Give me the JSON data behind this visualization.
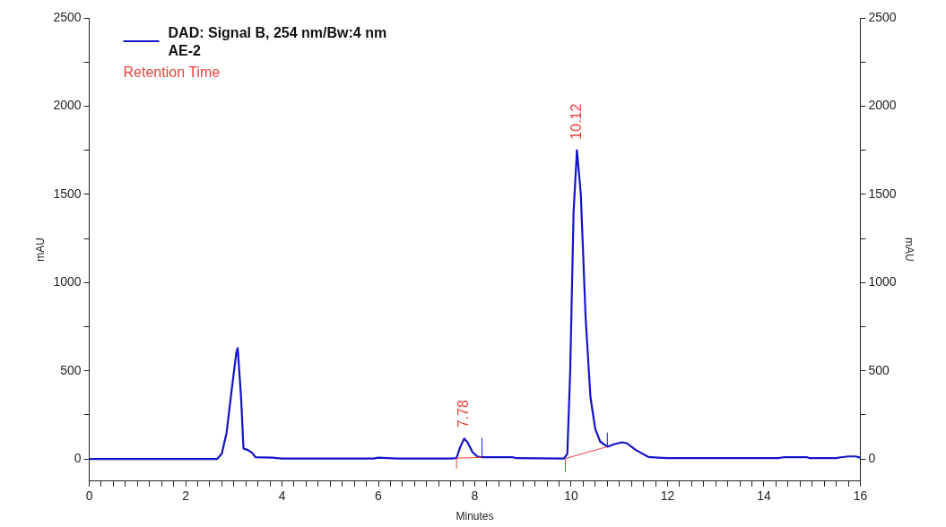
{
  "chart_data": {
    "type": "line",
    "xlabel": "Minutes",
    "ylabel": "mAU",
    "y2label": "mAU",
    "legend": "top left",
    "grid": false,
    "marker": "none",
    "line_style": "solid",
    "xlim": [
      0,
      16
    ],
    "xticks": [
      0,
      {
        "value": 0.25,
        "label": null
      },
      {
        "value": 0.5,
        "label": null
      },
      {
        "value": 0.75,
        "label": null
      },
      {
        "value": 1,
        "label": null
      },
      {
        "value": 1.25,
        "label": null
      },
      {
        "value": 1.5,
        "label": null
      },
      {
        "value": 1.75,
        "label": null
      },
      2,
      {
        "value": 2.25,
        "label": null
      },
      {
        "value": 2.5,
        "label": null
      },
      {
        "value": 2.75,
        "label": null
      },
      {
        "value": 3,
        "label": null
      },
      {
        "value": 3.25,
        "label": null
      },
      {
        "value": 3.5,
        "label": null
      },
      {
        "value": 3.75,
        "label": null
      },
      4,
      {
        "value": 4.25,
        "label": null
      },
      {
        "value": 4.5,
        "label": null
      },
      {
        "value": 4.75,
        "label": null
      },
      {
        "value": 5,
        "label": null
      },
      {
        "value": 5.25,
        "label": null
      },
      {
        "value": 5.5,
        "label": null
      },
      {
        "value": 5.75,
        "label": null
      },
      6,
      {
        "value": 6.25,
        "label": null
      },
      {
        "value": 6.5,
        "label": null
      },
      {
        "value": 6.75,
        "label": null
      },
      {
        "value": 7,
        "label": null
      },
      {
        "value": 7.25,
        "label": null
      },
      {
        "value": 7.5,
        "label": null
      },
      {
        "value": 7.75,
        "label": null
      },
      8,
      {
        "value": 8.25,
        "label": null
      },
      {
        "value": 8.5,
        "label": null
      },
      {
        "value": 8.75,
        "label": null
      },
      {
        "value": 9,
        "label": null
      },
      {
        "value": 9.25,
        "label": null
      },
      {
        "value": 9.5,
        "label": null
      },
      {
        "value": 9.75,
        "label": null
      },
      10,
      {
        "value": 10.25,
        "label": null
      },
      {
        "value": 10.5,
        "label": null
      },
      {
        "value": 10.75,
        "label": null
      },
      {
        "value": 11,
        "label": null
      },
      {
        "value": 11.25,
        "label": null
      },
      {
        "value": 11.5,
        "label": null
      },
      {
        "value": 11.75,
        "label": null
      },
      12,
      {
        "value": 12.25,
        "label": null
      },
      {
        "value": 12.5,
        "label": null
      },
      {
        "value": 12.75,
        "label": null
      },
      {
        "value": 13,
        "label": null
      },
      {
        "value": 13.25,
        "label": null
      },
      {
        "value": 13.5,
        "label": null
      },
      {
        "value": 13.75,
        "label": null
      },
      14,
      {
        "value": 14.25,
        "label": null
      },
      {
        "value": 14.5,
        "label": null
      },
      {
        "value": 14.75,
        "label": null
      },
      {
        "value": 15,
        "label": null
      },
      {
        "value": 15.25,
        "label": null
      },
      {
        "value": 15.5,
        "label": null
      },
      {
        "value": 15.75,
        "label": null
      },
      16
    ],
    "ylim": [
      -125,
      2500
    ],
    "yticks": [
      0,
      {
        "value": 250,
        "label": null
      },
      500,
      {
        "value": 750,
        "label": null
      },
      1000,
      {
        "value": 1250,
        "label": null
      },
      1500,
      {
        "value": 1750,
        "label": null
      },
      2000,
      {
        "value": 2250,
        "label": null
      },
      2500
    ],
    "y2lim": [
      -125,
      2500
    ],
    "y2ticks": [
      0,
      {
        "value": 250,
        "label": null
      },
      500,
      {
        "value": 750,
        "label": null
      },
      1000,
      {
        "value": 1250,
        "label": null
      },
      1500,
      {
        "value": 1750,
        "label": null
      },
      2000,
      {
        "value": 2250,
        "label": null
      },
      2500
    ],
    "series": [
      {
        "name": "DAD: Signal B, 254 nm/Bw:4 nm\nAE-2",
        "color": "#1414c8",
        "x": [
          0,
          2.65,
          2.75,
          2.85,
          2.95,
          3.05,
          3.08,
          3.15,
          3.2,
          3.3,
          3.38,
          3.45,
          3.8,
          4.0,
          5.9,
          6.0,
          6.2,
          6.4,
          7.5,
          7.62,
          7.7,
          7.78,
          7.85,
          7.95,
          8.05,
          8.15,
          8.8,
          8.85,
          9.85,
          9.92,
          9.98,
          10.05,
          10.12,
          10.2,
          10.3,
          10.4,
          10.5,
          10.6,
          10.75,
          10.9,
          11.05,
          11.15,
          11.35,
          11.6,
          11.8,
          12.0,
          14.3,
          14.4,
          14.9,
          14.95,
          15.5,
          15.6,
          15.75,
          15.9,
          16.0
        ],
        "values": [
          0,
          0,
          30,
          150,
          380,
          600,
          629,
          350,
          60,
          50,
          35,
          10,
          8,
          3,
          3,
          8,
          5,
          3,
          3,
          5,
          70,
          116,
          95,
          40,
          15,
          10,
          10,
          5,
          3,
          30,
          500,
          1400,
          1750,
          1500,
          800,
          350,
          170,
          100,
          70,
          85,
          95,
          90,
          50,
          12,
          8,
          5,
          5,
          10,
          10,
          5,
          5,
          10,
          15,
          15,
          8
        ]
      },
      {
        "color": "#e8403a",
        "x": [
          7.62,
          8.15
        ],
        "values": [
          5,
          10
        ]
      },
      {
        "color": "#e8403a",
        "x": [
          9.88,
          10.75
        ],
        "values": [
          3,
          70
        ]
      },
      {
        "color": "#e8403a",
        "x": [
          7.62,
          7.62
        ],
        "values": [
          -55,
          5
        ]
      },
      {
        "color": "#e8403a",
        "x": [
          9.88,
          9.88
        ],
        "values": [
          -75,
          3
        ]
      },
      {
        "color": "#1414c8",
        "x": [
          8.15,
          8.15
        ],
        "values": [
          10,
          120
        ]
      },
      {
        "color": "#1414c8",
        "x": [
          10.75,
          10.75
        ],
        "values": [
          70,
          150
        ]
      }
    ],
    "annotations": [
      "Retention Time",
      {
        "text": "7.78",
        "x": 7.78,
        "y": 116
      },
      {
        "text": "10.12",
        "x": 10.12,
        "y": 1750
      }
    ]
  }
}
